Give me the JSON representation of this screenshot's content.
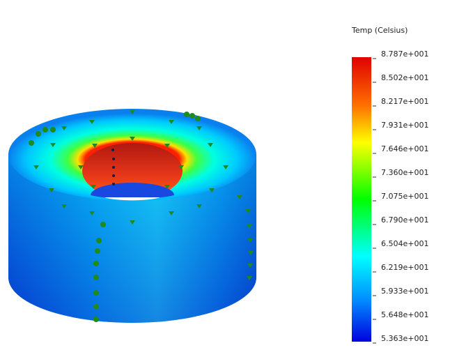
{
  "legend": {
    "title": "Temp (Celsius)",
    "labels": [
      "8.787e+001",
      "8.502e+001",
      "8.217e+001",
      "7.931e+001",
      "7.646e+001",
      "7.360e+001",
      "7.075e+001",
      "6.790e+001",
      "6.504e+001",
      "6.219e+001",
      "5.933e+001",
      "5.648e+001",
      "5.363e+001"
    ]
  }
}
